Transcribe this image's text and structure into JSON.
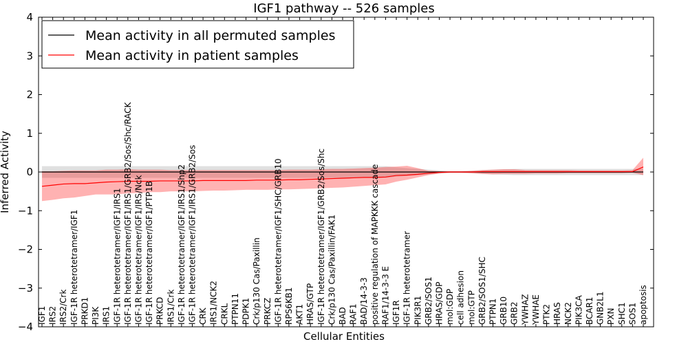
{
  "chart_data": {
    "type": "line",
    "title": "IGF1 pathway -- 526 samples",
    "xlabel": "Cellular Entities",
    "ylabel": "Inferred Activity",
    "ylim": [
      -4,
      4
    ],
    "yticks": [
      4,
      3,
      2,
      1,
      0,
      -1,
      -2,
      -3,
      -4
    ],
    "ytick_labels": [
      "4",
      "3",
      "2",
      "1",
      "0",
      "−1",
      "−2",
      "−3",
      "−4"
    ],
    "legend_position": "upper-left",
    "categories": [
      "IGF1",
      "IRS2",
      "IRS2/Crk",
      "IGF-1R heterotetramer/IGF1",
      "PRKD1",
      "PI3K",
      "IRS1",
      "IGF-1R heterotetramer/IGF1/IRS1",
      "IGF-1R heterotetramer/IGF1/IRS1/GRB2/Sos/Shc/RACK",
      "IGF-1R heterotetramer/IGF1/IRS/Nck",
      "IGF-1R heterotetramer/IGF1/PTP1B",
      "PRKCD",
      "IRS1/Crk",
      "IGF-1R heterotetramer/IGF1/IRS1/Shp2",
      "IGF-1R heterotetramer/IGF1/IRS1/GRB2/Sos",
      "CRK",
      "IRS1/NCK2",
      "CRKL",
      "PTPN11",
      "PDPK1",
      "Crk/p130 Cas/Paxillin",
      "PRKCZ",
      "IGF-1R heterotetramer/IGF1/SHC/GRB10",
      "RPS6KB1",
      "AKT1",
      "HRAS/GTP",
      "IGF-1R heterotetramer/IGF1/GRB2/Sos/Shc",
      "Crk/p130 Cas/Paxillin/FAK1",
      "BAD",
      "RAF1",
      "BAD/14-3-3",
      "positive regulation of MAPKKK cascade",
      "RAF1/14-3-3 E",
      "IGF1R",
      "IGF-1R heterotetramer",
      "PIK3R1",
      "GRB2/SOS1",
      "HRAS/GDP",
      "mol:GDP",
      "cell adhesion",
      "mol:GTP",
      "GRB2/SOS1/SHC",
      "PTPN1",
      "GRB10",
      "GRB2",
      "YWHAZ",
      "YWHAE",
      "PTK2",
      "HRAS",
      "NCK2",
      "PIK3CA",
      "BCAR1",
      "GNB2L1",
      "PXN",
      "SHC1",
      "SOS1",
      "apoptosis"
    ],
    "series": [
      {
        "name": "Mean activity in all permuted samples",
        "color": "#000000",
        "band_color": "#999999",
        "values": [
          0,
          0,
          0,
          0,
          0,
          0,
          0,
          0,
          0,
          0,
          0,
          0,
          0,
          0,
          0,
          0,
          0,
          0,
          0,
          0,
          0,
          0,
          0,
          0,
          0,
          0,
          0,
          0,
          0,
          0,
          0,
          0,
          0,
          0,
          0,
          0,
          0,
          0,
          0,
          0,
          0,
          0,
          0,
          0,
          0,
          0,
          0,
          0,
          0,
          0,
          0,
          0,
          0,
          0,
          0,
          0,
          0
        ],
        "lower": [
          -0.15,
          -0.15,
          -0.15,
          -0.15,
          -0.15,
          -0.15,
          -0.15,
          -0.15,
          -0.15,
          -0.15,
          -0.15,
          -0.15,
          -0.15,
          -0.15,
          -0.15,
          -0.15,
          -0.15,
          -0.15,
          -0.15,
          -0.15,
          -0.15,
          -0.15,
          -0.15,
          -0.15,
          -0.15,
          -0.15,
          -0.15,
          -0.15,
          -0.15,
          -0.15,
          -0.15,
          -0.15,
          -0.15,
          -0.12,
          -0.1,
          -0.08,
          -0.06,
          -0.04,
          -0.02,
          -0.02,
          -0.03,
          -0.05,
          -0.06,
          -0.07,
          -0.08,
          -0.08,
          -0.08,
          -0.08,
          -0.08,
          -0.08,
          -0.08,
          -0.08,
          -0.08,
          -0.08,
          -0.08,
          -0.08,
          -0.08
        ],
        "upper": [
          0.15,
          0.15,
          0.15,
          0.15,
          0.15,
          0.15,
          0.15,
          0.15,
          0.15,
          0.15,
          0.15,
          0.15,
          0.15,
          0.15,
          0.15,
          0.15,
          0.15,
          0.15,
          0.15,
          0.15,
          0.15,
          0.15,
          0.15,
          0.15,
          0.15,
          0.15,
          0.15,
          0.15,
          0.15,
          0.15,
          0.15,
          0.15,
          0.15,
          0.12,
          0.1,
          0.08,
          0.06,
          0.04,
          0.02,
          0.02,
          0.03,
          0.05,
          0.06,
          0.07,
          0.08,
          0.08,
          0.08,
          0.08,
          0.08,
          0.08,
          0.08,
          0.08,
          0.08,
          0.08,
          0.08,
          0.08,
          0.08
        ]
      },
      {
        "name": "Mean activity in patient samples",
        "color": "#ff0000",
        "band_color": "#ff0000",
        "values": [
          -0.37,
          -0.34,
          -0.31,
          -0.3,
          -0.3,
          -0.28,
          -0.26,
          -0.25,
          -0.24,
          -0.24,
          -0.24,
          -0.23,
          -0.23,
          -0.23,
          -0.23,
          -0.22,
          -0.22,
          -0.22,
          -0.22,
          -0.22,
          -0.21,
          -0.21,
          -0.21,
          -0.2,
          -0.2,
          -0.19,
          -0.18,
          -0.17,
          -0.16,
          -0.15,
          -0.14,
          -0.14,
          -0.13,
          -0.09,
          -0.08,
          -0.06,
          -0.03,
          -0.01,
          0.0,
          0.0,
          0.0,
          0.01,
          0.01,
          0.01,
          0.01,
          0.01,
          0.01,
          0.01,
          0.01,
          0.01,
          0.01,
          0.01,
          0.01,
          0.01,
          0.01,
          0.01,
          0.13
        ],
        "lower": [
          -0.75,
          -0.72,
          -0.68,
          -0.66,
          -0.62,
          -0.58,
          -0.58,
          -0.58,
          -0.55,
          -0.54,
          -0.52,
          -0.52,
          -0.5,
          -0.5,
          -0.5,
          -0.49,
          -0.48,
          -0.48,
          -0.47,
          -0.46,
          -0.46,
          -0.46,
          -0.45,
          -0.45,
          -0.44,
          -0.43,
          -0.42,
          -0.41,
          -0.4,
          -0.38,
          -0.36,
          -0.34,
          -0.32,
          -0.25,
          -0.2,
          -0.14,
          -0.08,
          -0.04,
          -0.02,
          -0.02,
          -0.03,
          -0.05,
          -0.06,
          -0.05,
          -0.05,
          -0.05,
          -0.04,
          -0.04,
          -0.04,
          -0.03,
          -0.03,
          -0.03,
          -0.03,
          -0.03,
          -0.03,
          -0.02,
          -0.08
        ],
        "upper": [
          0.02,
          0.02,
          0.03,
          0.04,
          0.04,
          0.04,
          0.06,
          0.06,
          0.07,
          0.06,
          0.06,
          0.06,
          0.05,
          0.05,
          0.05,
          0.05,
          0.05,
          0.05,
          0.05,
          0.05,
          0.05,
          0.05,
          0.05,
          0.06,
          0.06,
          0.06,
          0.07,
          0.08,
          0.08,
          0.09,
          0.1,
          0.11,
          0.13,
          0.14,
          0.16,
          0.1,
          0.03,
          0.02,
          0.02,
          0.02,
          0.03,
          0.05,
          0.06,
          0.07,
          0.07,
          0.05,
          0.05,
          0.05,
          0.05,
          0.05,
          0.04,
          0.04,
          0.04,
          0.04,
          0.04,
          0.05,
          0.37
        ]
      }
    ]
  }
}
